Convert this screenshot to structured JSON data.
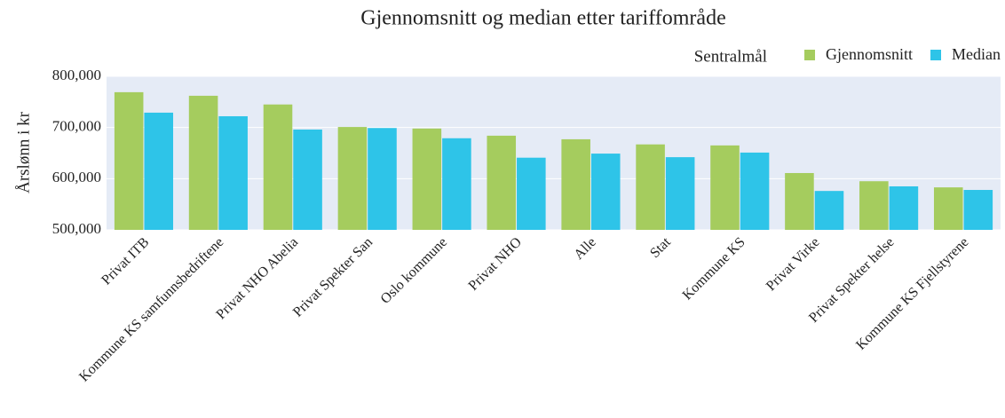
{
  "chart_data": {
    "type": "bar",
    "title": "Gjennomsnitt og median etter tariffområde",
    "y_label": "Årslønn i kr",
    "legend_title": "Sentralmål",
    "categories": [
      "Privat ITB",
      "Kommune KS samfunnsbedriftene",
      "Privat NHO Abelia",
      "Privat Spekter San",
      "Oslo kommune",
      "Privat NHO",
      "Alle",
      "Stat",
      "Kommune KS",
      "Privat Virke",
      "Privat Spekter helse",
      "Kommune KS Fjellstyrene"
    ],
    "series": [
      {
        "name": "Gjennomsnitt",
        "color": "#a5cc5e",
        "values": [
          769000,
          762000,
          745000,
          701000,
          698000,
          684000,
          677000,
          667000,
          665000,
          611000,
          595000,
          583000
        ]
      },
      {
        "name": "Median",
        "color": "#2ec4e8",
        "values": [
          729000,
          722000,
          696000,
          699000,
          679000,
          641000,
          649000,
          642000,
          651000,
          576000,
          585000,
          578000
        ]
      }
    ],
    "ylim": [
      500000,
      800000
    ],
    "yticks": [
      {
        "value": 500000,
        "label": "500,000"
      },
      {
        "value": 600000,
        "label": "600,000"
      },
      {
        "value": 700000,
        "label": "700,000"
      },
      {
        "value": 800000,
        "label": "800,000"
      }
    ],
    "grid": true,
    "legend_position": "top-right"
  }
}
